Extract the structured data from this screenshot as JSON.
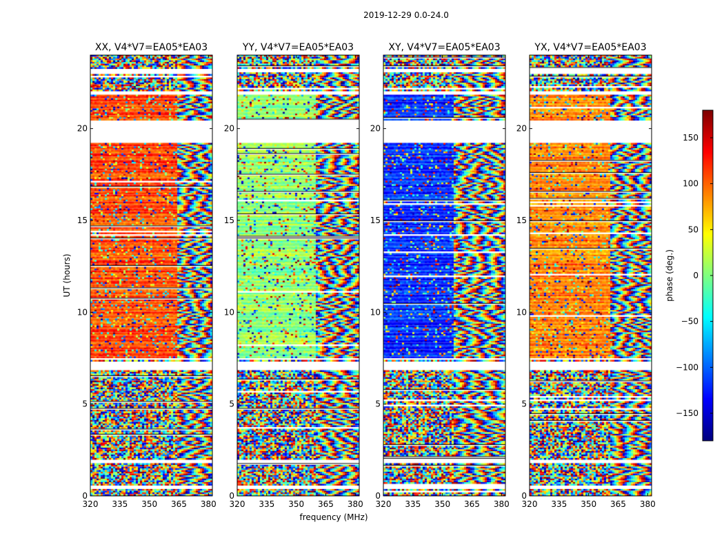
{
  "chart_data": {
    "type": "heatmap",
    "suptitle": "2019-12-29 0.0-24.0",
    "xlabel": "frequency (MHz)",
    "ylabel": "UT (hours)",
    "xlim": [
      320,
      382
    ],
    "ylim": [
      0,
      24
    ],
    "xticks": [
      320,
      335,
      350,
      365,
      380
    ],
    "yticks": [
      0,
      5,
      10,
      15,
      20
    ],
    "panels": [
      {
        "title": "XX, V4*V7=EA05*EA03",
        "dominant_phase_low_band": 110,
        "dominant_phase_high_band": 30,
        "coherent_until_mhz": 364
      },
      {
        "title": "YY, V4*V7=EA05*EA03",
        "dominant_phase_low_band": 5,
        "dominant_phase_high_band": 5,
        "coherent_until_mhz": 359
      },
      {
        "title": "XY, V4*V7=EA05*EA03",
        "dominant_phase_low_band": -120,
        "dominant_phase_high_band": 0,
        "coherent_until_mhz": 355
      },
      {
        "title": "YX, V4*V7=EA05*EA03",
        "dominant_phase_low_band": 90,
        "dominant_phase_high_band": 30,
        "coherent_until_mhz": 360
      }
    ],
    "flagged_ut_ranges": [
      [
        0.45,
        0.6
      ],
      [
        1.85,
        2.0
      ],
      [
        6.9,
        7.35
      ],
      [
        7.45,
        7.55
      ],
      [
        19.3,
        20.5
      ],
      [
        21.9,
        22.05
      ],
      [
        23.1,
        23.25
      ]
    ],
    "coherent_ut_range": [
      7.5,
      22.0
    ],
    "colorbar": {
      "label": "phase (deg.)",
      "range": [
        -180,
        180
      ],
      "ticks": [
        150,
        100,
        50,
        0,
        -50,
        -100,
        -150
      ],
      "tick_labels": [
        "150",
        "100",
        "50",
        "0",
        "−50",
        "−100",
        "−150"
      ],
      "colormap": "jet"
    }
  }
}
